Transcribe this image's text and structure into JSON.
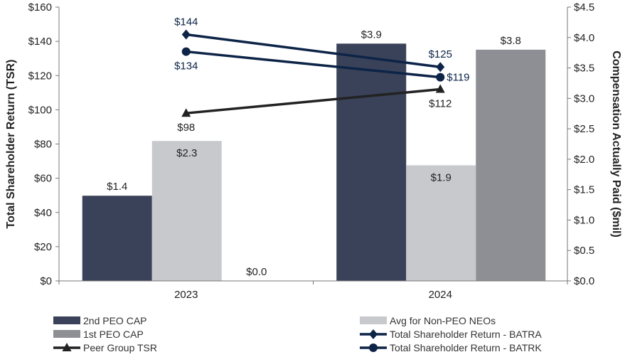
{
  "chart_data": {
    "type": "bar",
    "categories": [
      "2023",
      "2024"
    ],
    "left_axis": {
      "title": "Total Shareholder Return (TSR)",
      "range": [
        0,
        160
      ],
      "step": 20,
      "tick_labels": [
        "$0",
        "$20",
        "$40",
        "$60",
        "$80",
        "$100",
        "$120",
        "$140",
        "$160"
      ]
    },
    "right_axis": {
      "title": "Compensation Actually Paid ($mil)",
      "range": [
        0,
        4.5
      ],
      "step": 0.5,
      "tick_labels": [
        "$0.0",
        "$0.5",
        "$1.0",
        "$1.5",
        "$2.0",
        "$2.5",
        "$3.0",
        "$3.5",
        "$4.0",
        "$4.5"
      ]
    },
    "bar_series": [
      {
        "name": "2nd PEO CAP",
        "color": "#3a4259",
        "values": [
          1.4,
          3.9
        ],
        "labels": [
          "$1.4",
          "$3.9"
        ],
        "label_pos": [
          "above",
          "above"
        ]
      },
      {
        "name": "Avg for Non-PEO NEOs",
        "color": "#c8c9cd",
        "values": [
          2.3,
          1.9
        ],
        "labels": [
          "$2.3",
          "$1.9"
        ],
        "label_pos": [
          "inside",
          "inside"
        ]
      },
      {
        "name": "1st PEO CAP",
        "color": "#8e8f94",
        "values": [
          0.0,
          3.8
        ],
        "labels": [
          "$0.0",
          "$3.8"
        ],
        "label_pos": [
          "above",
          "above"
        ]
      }
    ],
    "line_series": [
      {
        "name": "Total Shareholder Return - BATRA",
        "color": "#0d2447",
        "marker": "diamond",
        "values": [
          144,
          125
        ],
        "labels": [
          "$144",
          "$125"
        ],
        "label_pos": [
          "above",
          "above"
        ]
      },
      {
        "name": "Total Shareholder Return - BATRK",
        "color": "#0d2447",
        "marker": "circle",
        "values": [
          134,
          119
        ],
        "labels": [
          "$134",
          "$119"
        ],
        "label_pos": [
          "below",
          "right"
        ]
      },
      {
        "name": "Peer Group TSR",
        "color": "#222222",
        "marker": "triangle",
        "values": [
          98,
          112
        ],
        "labels": [
          "$98",
          "$112"
        ],
        "label_pos": [
          "below",
          "below"
        ]
      }
    ],
    "legend": [
      "2nd PEO CAP",
      "Avg for Non-PEO NEOs",
      "1st PEO CAP",
      "Total Shareholder Return - BATRA",
      "Peer Group TSR",
      "Total Shareholder Return - BATRK"
    ],
    "legend_position": "bottom",
    "grid": false
  }
}
